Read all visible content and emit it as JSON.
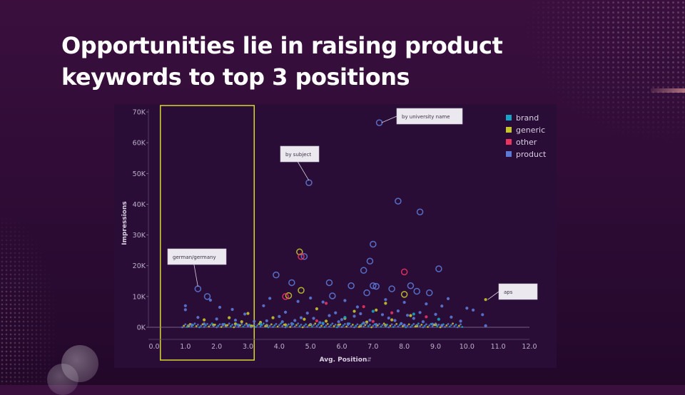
{
  "slide": {
    "title": "Opportunities lie in raising product keywords to top 3 positions"
  },
  "chart_data": {
    "type": "scatter",
    "xlabel": "Avg. Position",
    "ylabel": "Impressions",
    "xlim": [
      0,
      12
    ],
    "ylim": [
      0,
      70000
    ],
    "x_ticks": [
      "0.0",
      "1.0",
      "2.0",
      "3.0",
      "4.0",
      "5.0",
      "6.0",
      "7.0",
      "8.0",
      "9.0",
      "10.0",
      "11.0",
      "12.0"
    ],
    "y_ticks": [
      "0K",
      "10K",
      "20K",
      "30K",
      "40K",
      "50K",
      "60K",
      "70K"
    ],
    "legend_position": "top-right",
    "legend": [
      {
        "name": "brand",
        "color": "#17a2c6"
      },
      {
        "name": "generic",
        "color": "#c6c62a"
      },
      {
        "name": "other",
        "color": "#e8345f"
      },
      {
        "name": "product",
        "color": "#5b79d6"
      }
    ],
    "highlight_region": {
      "x_range": [
        0.2,
        3.2
      ],
      "color": "#d6d62e"
    },
    "annotations": [
      {
        "text": "by university name",
        "x": 7.2,
        "y": 66500
      },
      {
        "text": "by subject",
        "x": 4.95,
        "y": 47000
      },
      {
        "text": "german/germany",
        "x": 1.4,
        "y": 12500
      },
      {
        "text": "aps",
        "x": 10.6,
        "y": 9000
      }
    ],
    "series": [
      {
        "name": "product",
        "points": [
          [
            7.2,
            66500
          ],
          [
            4.95,
            47000
          ],
          [
            7.8,
            41000
          ],
          [
            8.5,
            37500
          ],
          [
            7.0,
            27000
          ],
          [
            4.8,
            23000
          ],
          [
            6.9,
            21500
          ],
          [
            6.7,
            18500
          ],
          [
            9.1,
            19000
          ],
          [
            3.9,
            17000
          ],
          [
            7.0,
            13500
          ],
          [
            7.1,
            13300
          ],
          [
            1.4,
            12500
          ],
          [
            1.7,
            10000
          ],
          [
            1.8,
            8800
          ],
          [
            1.0,
            7000
          ],
          [
            1.0,
            5700
          ],
          [
            4.4,
            14500
          ],
          [
            5.6,
            14500
          ],
          [
            6.3,
            13500
          ],
          [
            7.6,
            12500
          ],
          [
            8.2,
            13500
          ],
          [
            8.8,
            11200
          ],
          [
            8.4,
            11700
          ],
          [
            5.0,
            9500
          ],
          [
            5.7,
            10200
          ],
          [
            6.8,
            11200
          ],
          [
            9.4,
            9300
          ],
          [
            10.0,
            6200
          ],
          [
            3.7,
            9400
          ],
          [
            3.5,
            7000
          ],
          [
            2.1,
            6500
          ],
          [
            2.5,
            5800
          ],
          [
            2.9,
            4300
          ],
          [
            4.6,
            8400
          ],
          [
            5.4,
            8200
          ],
          [
            6.1,
            8700
          ],
          [
            7.4,
            9000
          ],
          [
            8.0,
            8100
          ],
          [
            8.7,
            7600
          ],
          [
            9.2,
            6900
          ],
          [
            10.2,
            5600
          ],
          [
            10.5,
            4100
          ],
          [
            6.5,
            6600
          ],
          [
            7.8,
            5300
          ],
          [
            8.5,
            4800
          ],
          [
            9.0,
            4200
          ],
          [
            4.2,
            4900
          ],
          [
            4.9,
            4600
          ],
          [
            5.8,
            4700
          ],
          [
            6.6,
            4400
          ],
          [
            7.3,
            4100
          ],
          [
            8.1,
            3900
          ],
          [
            9.5,
            3300
          ],
          [
            9.8,
            2000
          ],
          [
            4.7,
            3100
          ],
          [
            5.1,
            2900
          ],
          [
            6.0,
            2500
          ],
          [
            6.9,
            2300
          ],
          [
            7.7,
            2200
          ],
          [
            8.6,
            1800
          ],
          [
            1.4,
            3200
          ],
          [
            2.0,
            2700
          ],
          [
            2.6,
            2300
          ],
          [
            3.2,
            1900
          ],
          [
            3.6,
            2100
          ],
          [
            4.1,
            1800
          ],
          [
            1.2,
            800
          ],
          [
            1.6,
            1100
          ],
          [
            2.2,
            900
          ],
          [
            2.7,
            700
          ],
          [
            3.0,
            600
          ],
          [
            4.4,
            1200
          ],
          [
            5.3,
            1500
          ],
          [
            6.2,
            1100
          ],
          [
            7.1,
            900
          ],
          [
            8.0,
            700
          ],
          [
            9.2,
            600
          ],
          [
            10.6,
            500
          ],
          [
            5.6,
            3800
          ],
          [
            6.4,
            3600
          ],
          [
            7.5,
            3000
          ],
          [
            8.3,
            2900
          ],
          [
            4.0,
            3500
          ],
          [
            4.5,
            2200
          ],
          [
            5.9,
            1800
          ],
          [
            6.7,
            1400
          ],
          [
            7.9,
            1200
          ],
          [
            8.9,
            1000
          ]
        ]
      },
      {
        "name": "generic",
        "points": [
          [
            4.65,
            24500
          ],
          [
            4.7,
            12000
          ],
          [
            10.6,
            9000
          ],
          [
            7.4,
            7800
          ],
          [
            8.0,
            10700
          ],
          [
            4.3,
            10300
          ],
          [
            3.0,
            4500
          ],
          [
            5.2,
            6000
          ],
          [
            6.4,
            5200
          ],
          [
            7.1,
            5600
          ],
          [
            8.2,
            3800
          ],
          [
            2.4,
            3100
          ],
          [
            1.6,
            2400
          ],
          [
            2.8,
            1800
          ],
          [
            3.4,
            1600
          ],
          [
            4.8,
            2600
          ],
          [
            5.5,
            2000
          ],
          [
            6.8,
            1700
          ],
          [
            9.0,
            900
          ],
          [
            1.1,
            500
          ],
          [
            1.9,
            700
          ],
          [
            2.3,
            500
          ],
          [
            3.1,
            400
          ],
          [
            3.6,
            600
          ],
          [
            4.2,
            800
          ],
          [
            5.0,
            900
          ],
          [
            5.9,
            700
          ],
          [
            6.6,
            500
          ],
          [
            7.4,
            600
          ],
          [
            8.4,
            500
          ],
          [
            3.8,
            3100
          ],
          [
            6.1,
            2900
          ],
          [
            7.6,
            2400
          ],
          [
            2.6,
            1100
          ]
        ]
      },
      {
        "name": "other",
        "points": [
          [
            4.7,
            23000
          ],
          [
            8.0,
            18000
          ],
          [
            4.2,
            10000
          ],
          [
            5.5,
            7800
          ],
          [
            6.7,
            6700
          ],
          [
            7.6,
            4700
          ],
          [
            8.7,
            3400
          ],
          [
            5.2,
            2100
          ],
          [
            7.0,
            1900
          ]
        ]
      },
      {
        "name": "brand",
        "points": [
          [
            7.0,
            5200
          ],
          [
            8.3,
            4300
          ],
          [
            6.1,
            3200
          ],
          [
            9.1,
            2600
          ],
          [
            5.4,
            1300
          ],
          [
            3.4,
            1000
          ]
        ]
      }
    ]
  }
}
